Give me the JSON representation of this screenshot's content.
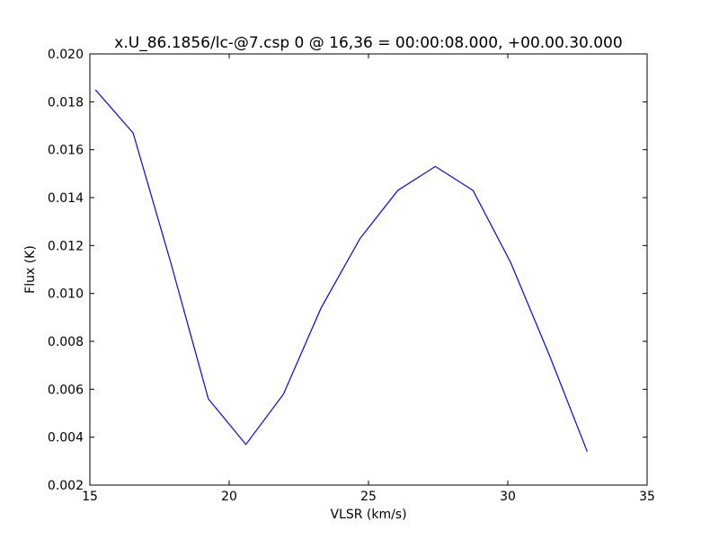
{
  "chart_data": {
    "type": "line",
    "title": "x.U_86.1856/lc-@7.csp 0 @ 16,36 = 00:00:08.000, +00.00.30.000",
    "xlabel": "VLSR (km/s)",
    "ylabel": "Flux (K)",
    "xlim": [
      15,
      35
    ],
    "ylim": [
      0.002,
      0.02
    ],
    "xticks": [
      "15",
      "20",
      "25",
      "30",
      "35"
    ],
    "yticks": [
      "0.002",
      "0.004",
      "0.006",
      "0.008",
      "0.010",
      "0.012",
      "0.014",
      "0.016",
      "0.018",
      "0.020"
    ],
    "grid": false,
    "line_color": "#0000ff",
    "series": [
      {
        "x": [
          15.2,
          16.55,
          17.9,
          19.25,
          20.6,
          21.95,
          23.3,
          24.7,
          26.05,
          27.4,
          28.75,
          30.1,
          31.5,
          32.85
        ],
        "y": [
          0.0185,
          0.0167,
          0.0113,
          0.0056,
          0.0037,
          0.0058,
          0.0094,
          0.0123,
          0.0143,
          0.0153,
          0.0143,
          0.0113,
          0.0074,
          0.0034
        ]
      }
    ]
  }
}
